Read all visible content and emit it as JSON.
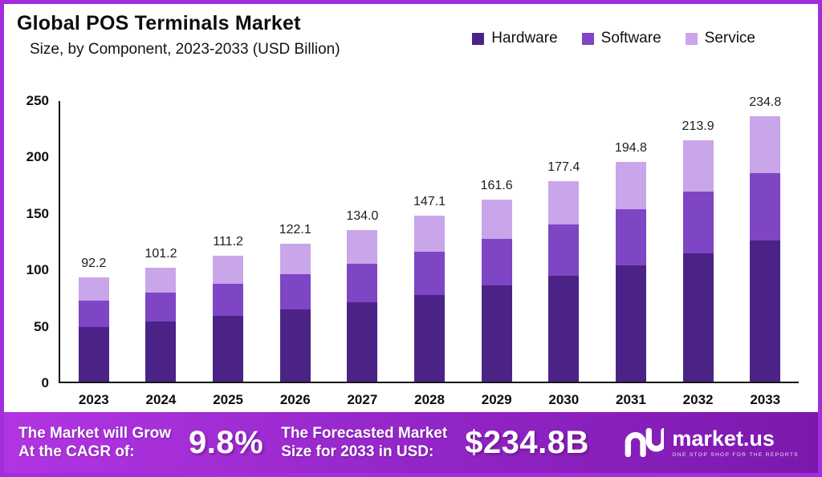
{
  "frame": {
    "border_color": "#a22ddb"
  },
  "header": {
    "title": "Global POS Terminals Market",
    "subtitle": "Size, by Component, 2023-2033 (USD Billion)"
  },
  "legend": [
    {
      "label": "Hardware",
      "color": "#4b2386"
    },
    {
      "label": "Software",
      "color": "#7e45c4"
    },
    {
      "label": "Service",
      "color": "#c9a5e9"
    }
  ],
  "chart_data": {
    "type": "bar",
    "stacked": true,
    "title": "Global POS Terminals Market",
    "subtitle": "Size, by Component, 2023-2033 (USD Billion)",
    "xlabel": "",
    "ylabel": "",
    "ylim": [
      0,
      250
    ],
    "y_ticks": [
      250,
      200,
      150,
      100,
      50,
      0
    ],
    "grid": false,
    "legend_position": "top-right",
    "categories": [
      "2023",
      "2024",
      "2025",
      "2026",
      "2027",
      "2028",
      "2029",
      "2030",
      "2031",
      "2032",
      "2033"
    ],
    "series": [
      {
        "name": "Hardware",
        "color": "#4b2386",
        "values": [
          48.0,
          53.0,
          58.0,
          64.0,
          70.0,
          77.0,
          85.0,
          93.5,
          103.0,
          113.5,
          125.0
        ]
      },
      {
        "name": "Software",
        "color": "#7e45c4",
        "values": [
          24.0,
          26.0,
          29.0,
          31.5,
          34.5,
          38.0,
          41.5,
          45.5,
          49.5,
          54.5,
          59.5
        ]
      },
      {
        "name": "Service",
        "color": "#c9a5e9",
        "values": [
          20.2,
          22.2,
          24.2,
          26.6,
          29.5,
          32.1,
          35.1,
          38.4,
          42.3,
          45.9,
          50.3
        ]
      }
    ],
    "totals": [
      92.2,
      101.2,
      111.2,
      122.1,
      134.0,
      147.1,
      161.6,
      177.4,
      194.8,
      213.9,
      234.8
    ],
    "total_labels": [
      "92.2",
      "101.2",
      "111.2",
      "122.1",
      "134.0",
      "147.1",
      "161.6",
      "177.4",
      "194.8",
      "213.9",
      "234.8"
    ]
  },
  "banner": {
    "colors": [
      "#b235e3",
      "#9527c9",
      "#7c18ad"
    ],
    "cagr_label_line1": "The Market will Grow",
    "cagr_label_line2": "At the CAGR of:",
    "cagr_value": "9.8%",
    "forecast_label_line1": "The Forecasted Market",
    "forecast_label_line2": "Size for 2033 in USD:",
    "forecast_value": "$234.8B",
    "logo_text": "market.us",
    "logo_tagline": "ONE STOP SHOP FOR THE REPORTS"
  }
}
